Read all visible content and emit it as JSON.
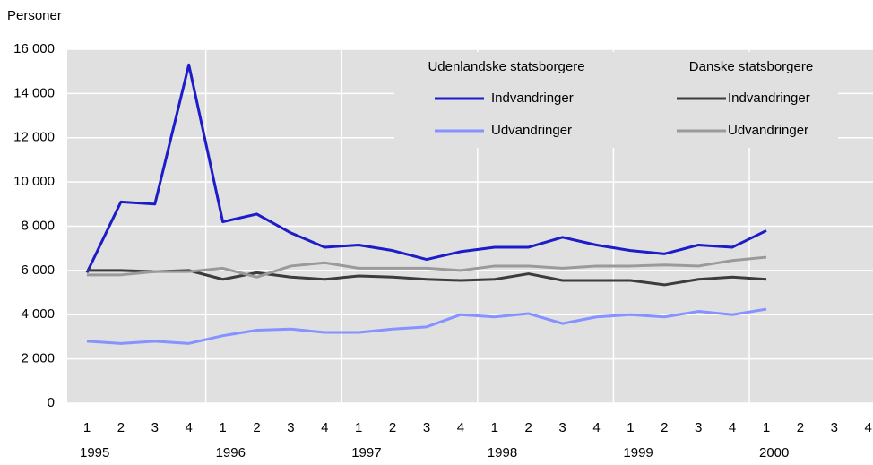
{
  "chart_data": {
    "type": "line",
    "y_label": "Personer",
    "categories": [
      "1",
      "2",
      "3",
      "4",
      "1",
      "2",
      "3",
      "4",
      "1",
      "2",
      "3",
      "4",
      "1",
      "2",
      "3",
      "4",
      "1",
      "2",
      "3",
      "4",
      "1",
      "2",
      "3",
      "4"
    ],
    "years": [
      "1995",
      "1996",
      "1997",
      "1998",
      "1999",
      "2000"
    ],
    "ylim": [
      0,
      16000
    ],
    "yticks": [
      0,
      {
        "value": 2000,
        "label": "2 000"
      },
      {
        "value": 4000,
        "label": "4 000"
      },
      {
        "value": 6000,
        "label": "6 000"
      },
      {
        "value": 8000,
        "label": "8 000"
      },
      {
        "value": 10000,
        "label": "10 000"
      },
      {
        "value": 12000,
        "label": "12 000"
      },
      {
        "value": 14000,
        "label": "14 000"
      },
      {
        "value": 16000,
        "label": "16 000"
      }
    ],
    "grid": true,
    "groups": [
      {
        "name": "Udenlandske statsborgere",
        "series": [
          {
            "name": "Indvandringer",
            "color": "#1c1cc8",
            "values": [
              5900,
              9100,
              9000,
              15300,
              8200,
              8550,
              7700,
              7050,
              7150,
              6900,
              6500,
              6850,
              7050,
              7050,
              7500,
              7150,
              6900,
              6750,
              7150,
              7050,
              7800,
              null,
              null,
              null
            ]
          },
          {
            "name": "Udvandringer",
            "color": "#8592ff",
            "values": [
              2800,
              2700,
              2800,
              2700,
              3050,
              3300,
              3350,
              3200,
              3200,
              3350,
              3450,
              4000,
              3900,
              4050,
              3600,
              3900,
              4000,
              3900,
              4150,
              4000,
              4250,
              null,
              null,
              null
            ]
          }
        ]
      },
      {
        "name": "Danske statsborgere",
        "series": [
          {
            "name": "Indvandringer",
            "color": "#3c3c3c",
            "values": [
              6000,
              6000,
              5950,
              6000,
              5600,
              5900,
              5700,
              5600,
              5750,
              5700,
              5600,
              5550,
              5600,
              5850,
              5550,
              5550,
              5550,
              5350,
              5600,
              5700,
              5600,
              null,
              null,
              null
            ]
          },
          {
            "name": "Udvandringer",
            "color": "#9a9a9a",
            "values": [
              5800,
              5800,
              5950,
              5950,
              6100,
              5700,
              6200,
              6350,
              6100,
              6100,
              6100,
              6000,
              6200,
              6200,
              6100,
              6200,
              6200,
              6250,
              6200,
              6450,
              6600,
              null,
              null,
              null
            ]
          }
        ]
      }
    ]
  }
}
